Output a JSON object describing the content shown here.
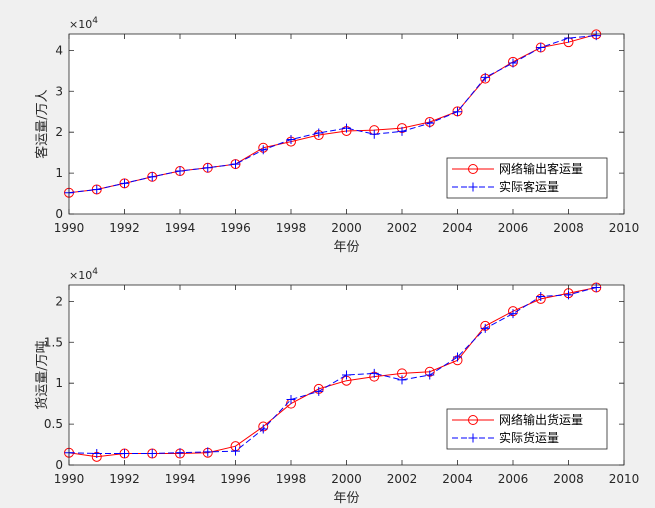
{
  "chart_data": [
    {
      "type": "line",
      "title": "",
      "xlabel": "年份",
      "ylabel": "客运量/万人",
      "xlim": [
        1990,
        2010
      ],
      "ylim": [
        0,
        4.4
      ],
      "x_ticks": [
        "1990",
        "1992",
        "1994",
        "1996",
        "1998",
        "2000",
        "2002",
        "2004",
        "2006",
        "2008",
        "2010"
      ],
      "y_ticks": [
        "0",
        "1",
        "2",
        "3",
        "4"
      ],
      "y_exponent_base": "×10",
      "y_exponent_power": "4",
      "grid": false,
      "legend": "bottom-right",
      "x": [
        1990,
        1991,
        1992,
        1993,
        1994,
        1995,
        1996,
        1997,
        1998,
        1999,
        2000,
        2001,
        2002,
        2003,
        2004,
        2005,
        2006,
        2007,
        2008,
        2009
      ],
      "series": [
        {
          "name": "网络输出客运量",
          "color": "#ff0000",
          "style": "solid",
          "marker": "circle",
          "values": [
            0.52,
            0.6,
            0.75,
            0.91,
            1.05,
            1.13,
            1.22,
            1.62,
            1.77,
            1.93,
            2.03,
            2.05,
            2.1,
            2.25,
            2.51,
            3.31,
            3.72,
            4.07,
            4.2,
            4.39
          ]
        },
        {
          "name": "实际客运量",
          "color": "#0000ff",
          "style": "dashed",
          "marker": "plus",
          "values": [
            0.52,
            0.6,
            0.75,
            0.91,
            1.05,
            1.13,
            1.22,
            1.57,
            1.82,
            1.98,
            2.1,
            1.95,
            2.02,
            2.22,
            2.5,
            3.34,
            3.69,
            4.07,
            4.3,
            4.36
          ]
        }
      ]
    },
    {
      "type": "line",
      "title": "",
      "xlabel": "年份",
      "ylabel": "货运量/万吨",
      "xlim": [
        1990,
        2010
      ],
      "ylim": [
        0,
        2.2
      ],
      "x_ticks": [
        "1990",
        "1992",
        "1994",
        "1996",
        "1998",
        "2000",
        "2002",
        "2004",
        "2006",
        "2008",
        "2010"
      ],
      "y_ticks": [
        "0",
        "0.5",
        "1",
        "1.5",
        "2"
      ],
      "y_exponent_base": "×10",
      "y_exponent_power": "4",
      "grid": false,
      "legend": "bottom-right",
      "x": [
        1990,
        1991,
        1992,
        1993,
        1994,
        1995,
        1996,
        1997,
        1998,
        1999,
        2000,
        2001,
        2002,
        2003,
        2004,
        2005,
        2006,
        2007,
        2008,
        2009
      ],
      "series": [
        {
          "name": "网络输出货运量",
          "color": "#ff0000",
          "style": "solid",
          "marker": "circle",
          "values": [
            0.15,
            0.1,
            0.14,
            0.14,
            0.14,
            0.15,
            0.23,
            0.47,
            0.75,
            0.93,
            1.03,
            1.08,
            1.12,
            1.14,
            1.28,
            1.7,
            1.88,
            2.03,
            2.1,
            2.17
          ]
        },
        {
          "name": "实际货运量",
          "color": "#0000ff",
          "style": "dashed",
          "marker": "plus",
          "values": [
            0.15,
            0.14,
            0.14,
            0.14,
            0.15,
            0.16,
            0.17,
            0.44,
            0.8,
            0.9,
            1.1,
            1.12,
            1.04,
            1.1,
            1.32,
            1.67,
            1.85,
            2.06,
            2.08,
            2.17
          ]
        }
      ]
    }
  ]
}
